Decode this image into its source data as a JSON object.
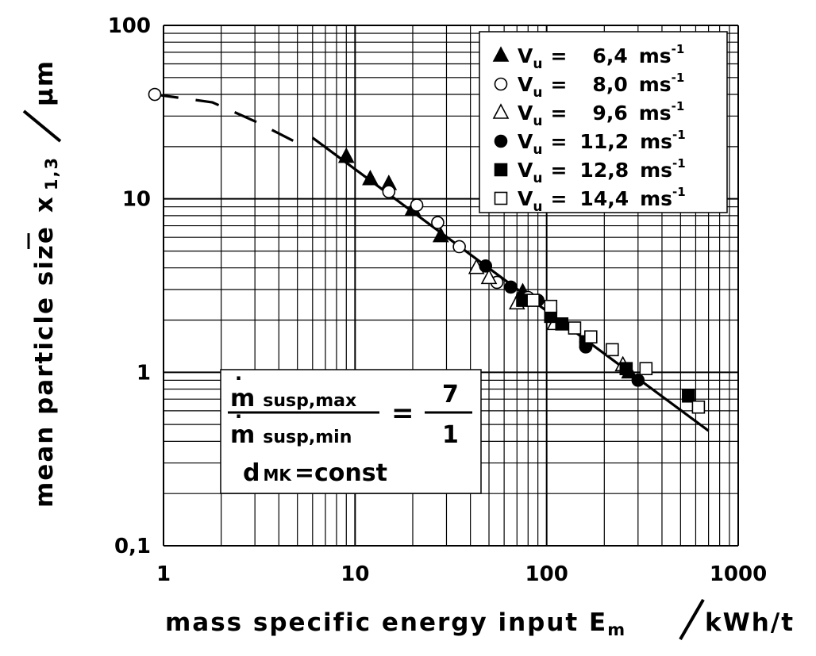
{
  "chart_data": {
    "type": "scatter",
    "title": "",
    "x_scale": "log",
    "y_scale": "log",
    "xlim": [
      1,
      1000
    ],
    "ylim": [
      0.1,
      100
    ],
    "grid": true,
    "legend_position": "top-right",
    "x_ticks": [
      "1",
      "10",
      "100",
      "1000"
    ],
    "y_ticks": [
      "100",
      "10",
      "1",
      "0,1"
    ],
    "xlabel": {
      "main": "mass specific energy input E",
      "sub": "m",
      "unit": "kWh/t"
    },
    "ylabel": {
      "main": "mean particle size",
      "symbol": "x",
      "sub": "1,3",
      "unit": "µm"
    },
    "series": [
      {
        "name": "6,4",
        "legend": {
          "prefix": "V",
          "sub": "u",
          "eq": "=",
          "value": "6,4",
          "unit": "ms",
          "exp": "-1"
        },
        "marker": "filled-triangle",
        "points": [
          [
            9,
            17.5
          ],
          [
            12,
            13
          ],
          [
            15,
            12.2
          ],
          [
            20,
            8.7
          ],
          [
            28,
            6.1
          ],
          [
            75,
            2.9
          ],
          [
            270,
            1.0
          ]
        ]
      },
      {
        "name": "8,0",
        "legend": {
          "prefix": "V",
          "sub": "u",
          "eq": "=",
          "value": "8,0",
          "unit": "ms",
          "exp": "-1"
        },
        "marker": "open-circle",
        "points": [
          [
            0.9,
            40
          ],
          [
            15,
            11
          ],
          [
            21,
            9.2
          ],
          [
            27,
            7.3
          ],
          [
            35,
            5.3
          ],
          [
            55,
            3.3
          ],
          [
            80,
            2.7
          ],
          [
            160,
            1.5
          ]
        ]
      },
      {
        "name": "9,6",
        "legend": {
          "prefix": "V",
          "sub": "u",
          "eq": "=",
          "value": "9,6",
          "unit": "ms",
          "exp": "-1"
        },
        "marker": "open-triangle",
        "points": [
          [
            43,
            4.0
          ],
          [
            50,
            3.5
          ],
          [
            70,
            2.5
          ],
          [
            110,
            1.9
          ],
          [
            250,
            1.1
          ]
        ]
      },
      {
        "name": "11,2",
        "legend": {
          "prefix": "V",
          "sub": "u",
          "eq": "=",
          "value": "11,2",
          "unit": "ms",
          "exp": "-1"
        },
        "marker": "filled-circle",
        "points": [
          [
            48,
            4.1
          ],
          [
            65,
            3.1
          ],
          [
            90,
            2.6
          ],
          [
            160,
            1.4
          ],
          [
            300,
            0.9
          ]
        ]
      },
      {
        "name": "12,8",
        "legend": {
          "prefix": "V",
          "sub": "u",
          "eq": "=",
          "value": "12,8",
          "unit": "ms",
          "exp": "-1"
        },
        "marker": "filled-square",
        "points": [
          [
            75,
            2.6
          ],
          [
            105,
            2.1
          ],
          [
            120,
            1.9
          ],
          [
            160,
            1.5
          ],
          [
            260,
            1.05
          ],
          [
            550,
            0.73
          ]
        ]
      },
      {
        "name": "14,4",
        "legend": {
          "prefix": "V",
          "sub": "u",
          "eq": "=",
          "value": "14,4",
          "unit": "ms",
          "exp": "-1"
        },
        "marker": "open-square",
        "points": [
          [
            85,
            2.6
          ],
          [
            105,
            2.4
          ],
          [
            140,
            1.8
          ],
          [
            170,
            1.6
          ],
          [
            220,
            1.35
          ],
          [
            330,
            1.05
          ],
          [
            620,
            0.63
          ]
        ]
      }
    ],
    "fit_line": {
      "style": "solid",
      "points": [
        [
          6,
          22.5
        ],
        [
          700,
          0.46
        ]
      ]
    },
    "dashed_line": {
      "style": "dashed",
      "points": [
        [
          0.9,
          40
        ],
        [
          1.8,
          36
        ],
        [
          3,
          28
        ],
        [
          5,
          21
        ]
      ]
    },
    "annotation": {
      "numerator": "m",
      "numerator_sub": "susp,max",
      "denominator": "m",
      "denominator_sub": "susp,min",
      "equals": "=",
      "ratio_top": "7",
      "ratio_bottom": "1",
      "line2_main": "d",
      "line2_sub": "MK",
      "line2_rest": "=const"
    }
  }
}
